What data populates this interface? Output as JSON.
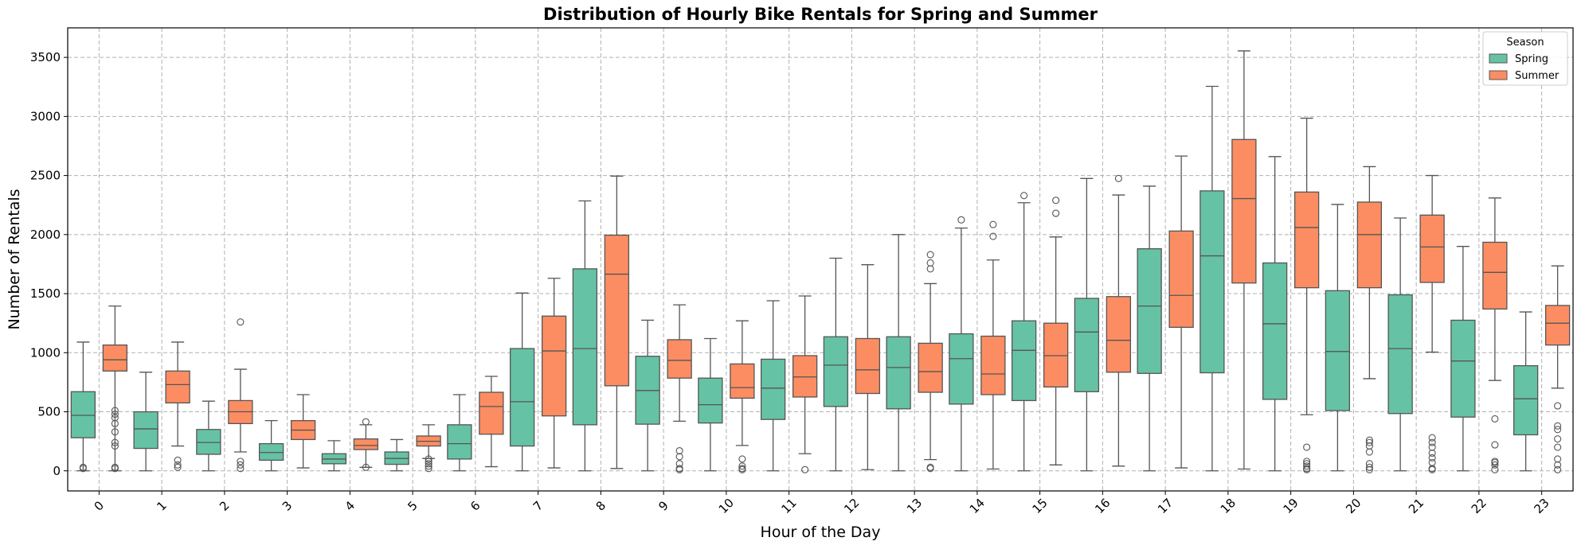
{
  "chart_data": {
    "type": "box",
    "title": "Distribution of Hourly Bike Rentals for Spring and Summer",
    "xlabel": "Hour of the Day",
    "ylabel": "Number of Rentals",
    "ylim": [
      -170,
      3750
    ],
    "yticks": [
      0,
      500,
      1000,
      1500,
      2000,
      2500,
      3000,
      3500
    ],
    "grid": true,
    "legend": {
      "title": "Season",
      "placement": "top-right"
    },
    "categories": [
      "0",
      "1",
      "2",
      "3",
      "4",
      "5",
      "6",
      "7",
      "8",
      "9",
      "10",
      "11",
      "12",
      "13",
      "14",
      "15",
      "16",
      "17",
      "18",
      "19",
      "20",
      "21",
      "22",
      "23"
    ],
    "series": [
      {
        "name": "Spring",
        "color": "#66c2a5",
        "boxes": [
          {
            "whislo": 0,
            "q1": 280,
            "med": 470,
            "q3": 670,
            "whishi": 1090,
            "fliers": [
              20,
              30
            ]
          },
          {
            "whislo": 0,
            "q1": 190,
            "med": 355,
            "q3": 500,
            "whishi": 835,
            "fliers": []
          },
          {
            "whislo": 0,
            "q1": 140,
            "med": 240,
            "q3": 350,
            "whishi": 590,
            "fliers": []
          },
          {
            "whislo": 0,
            "q1": 90,
            "med": 155,
            "q3": 230,
            "whishi": 425,
            "fliers": []
          },
          {
            "whislo": 0,
            "q1": 60,
            "med": 100,
            "q3": 145,
            "whishi": 255,
            "fliers": []
          },
          {
            "whislo": 0,
            "q1": 55,
            "med": 105,
            "q3": 160,
            "whishi": 265,
            "fliers": []
          },
          {
            "whislo": 0,
            "q1": 100,
            "med": 230,
            "q3": 390,
            "whishi": 645,
            "fliers": []
          },
          {
            "whislo": 0,
            "q1": 210,
            "med": 585,
            "q3": 1035,
            "whishi": 1505,
            "fliers": []
          },
          {
            "whislo": 0,
            "q1": 390,
            "med": 1035,
            "q3": 1710,
            "whishi": 2285,
            "fliers": []
          },
          {
            "whislo": 0,
            "q1": 395,
            "med": 680,
            "q3": 970,
            "whishi": 1275,
            "fliers": []
          },
          {
            "whislo": 0,
            "q1": 405,
            "med": 560,
            "q3": 785,
            "whishi": 1120,
            "fliers": []
          },
          {
            "whislo": 0,
            "q1": 435,
            "med": 700,
            "q3": 945,
            "whishi": 1440,
            "fliers": []
          },
          {
            "whislo": 0,
            "q1": 545,
            "med": 895,
            "q3": 1135,
            "whishi": 1800,
            "fliers": []
          },
          {
            "whislo": 0,
            "q1": 525,
            "med": 875,
            "q3": 1135,
            "whishi": 2000,
            "fliers": []
          },
          {
            "whislo": 0,
            "q1": 565,
            "med": 950,
            "q3": 1160,
            "whishi": 2055,
            "fliers": [
              2125
            ]
          },
          {
            "whislo": 0,
            "q1": 595,
            "med": 1020,
            "q3": 1270,
            "whishi": 2270,
            "fliers": [
              2330
            ]
          },
          {
            "whislo": 0,
            "q1": 670,
            "med": 1175,
            "q3": 1460,
            "whishi": 2475,
            "fliers": []
          },
          {
            "whislo": 0,
            "q1": 825,
            "med": 1395,
            "q3": 1880,
            "whishi": 2410,
            "fliers": []
          },
          {
            "whislo": 0,
            "q1": 830,
            "med": 1820,
            "q3": 2370,
            "whishi": 3255,
            "fliers": []
          },
          {
            "whislo": 0,
            "q1": 605,
            "med": 1245,
            "q3": 1760,
            "whishi": 2660,
            "fliers": []
          },
          {
            "whislo": 0,
            "q1": 510,
            "med": 1010,
            "q3": 1525,
            "whishi": 2255,
            "fliers": []
          },
          {
            "whislo": 0,
            "q1": 485,
            "med": 1035,
            "q3": 1490,
            "whishi": 2140,
            "fliers": []
          },
          {
            "whislo": 0,
            "q1": 455,
            "med": 930,
            "q3": 1275,
            "whishi": 1900,
            "fliers": []
          },
          {
            "whislo": 0,
            "q1": 305,
            "med": 610,
            "q3": 890,
            "whishi": 1345,
            "fliers": []
          }
        ]
      },
      {
        "name": "Summer",
        "color": "#fc8d62",
        "boxes": [
          {
            "whislo": 0,
            "q1": 845,
            "med": 940,
            "q3": 1065,
            "whishi": 1395,
            "fliers": [
              20,
              30,
              210,
              240,
              330,
              400,
              450,
              480,
              510
            ]
          },
          {
            "whislo": 210,
            "q1": 575,
            "med": 730,
            "q3": 845,
            "whishi": 1090,
            "fliers": [
              30,
              50,
              90
            ]
          },
          {
            "whislo": 160,
            "q1": 400,
            "med": 500,
            "q3": 595,
            "whishi": 860,
            "fliers": [
              20,
              50,
              80,
              1260
            ]
          },
          {
            "whislo": 25,
            "q1": 265,
            "med": 345,
            "q3": 425,
            "whishi": 645,
            "fliers": []
          },
          {
            "whislo": 30,
            "q1": 180,
            "med": 215,
            "q3": 270,
            "whishi": 390,
            "fliers": [
              30,
              415
            ]
          },
          {
            "whislo": 105,
            "q1": 210,
            "med": 250,
            "q3": 295,
            "whishi": 390,
            "fliers": [
              20,
              40,
              60,
              80,
              100
            ]
          },
          {
            "whislo": 35,
            "q1": 310,
            "med": 545,
            "q3": 665,
            "whishi": 800,
            "fliers": []
          },
          {
            "whislo": 25,
            "q1": 465,
            "med": 1015,
            "q3": 1310,
            "whishi": 1630,
            "fliers": []
          },
          {
            "whislo": 20,
            "q1": 720,
            "med": 1665,
            "q3": 1995,
            "whishi": 2495,
            "fliers": []
          },
          {
            "whislo": 420,
            "q1": 785,
            "med": 935,
            "q3": 1110,
            "whishi": 1405,
            "fliers": [
              10,
              20,
              60,
              120,
              170
            ]
          },
          {
            "whislo": 215,
            "q1": 615,
            "med": 705,
            "q3": 905,
            "whishi": 1270,
            "fliers": [
              10,
              20,
              40,
              100
            ]
          },
          {
            "whislo": 145,
            "q1": 625,
            "med": 795,
            "q3": 975,
            "whishi": 1480,
            "fliers": [
              10
            ]
          },
          {
            "whislo": 10,
            "q1": 655,
            "med": 855,
            "q3": 1120,
            "whishi": 1745,
            "fliers": []
          },
          {
            "whislo": 95,
            "q1": 665,
            "med": 840,
            "q3": 1080,
            "whishi": 1585,
            "fliers": [
              20,
              30,
              1710,
              1760,
              1830
            ]
          },
          {
            "whislo": 15,
            "q1": 645,
            "med": 820,
            "q3": 1140,
            "whishi": 1785,
            "fliers": [
              1985,
              2085
            ]
          },
          {
            "whislo": 50,
            "q1": 710,
            "med": 975,
            "q3": 1250,
            "whishi": 1980,
            "fliers": [
              2180,
              2290
            ]
          },
          {
            "whislo": 40,
            "q1": 835,
            "med": 1105,
            "q3": 1475,
            "whishi": 2335,
            "fliers": [
              2475
            ]
          },
          {
            "whislo": 25,
            "q1": 1215,
            "med": 1485,
            "q3": 2030,
            "whishi": 2665,
            "fliers": []
          },
          {
            "whislo": 15,
            "q1": 1590,
            "med": 2305,
            "q3": 2805,
            "whishi": 3555,
            "fliers": []
          },
          {
            "whislo": 475,
            "q1": 1550,
            "med": 2060,
            "q3": 2360,
            "whishi": 2985,
            "fliers": [
              10,
              20,
              40,
              60,
              80,
              200
            ]
          },
          {
            "whislo": 780,
            "q1": 1550,
            "med": 2000,
            "q3": 2275,
            "whishi": 2575,
            "fliers": [
              10,
              30,
              60,
              160,
              210,
              240,
              260
            ]
          },
          {
            "whislo": 1005,
            "q1": 1595,
            "med": 1895,
            "q3": 2165,
            "whishi": 2500,
            "fliers": [
              10,
              20,
              70,
              110,
              150,
              200,
              240,
              280
            ]
          },
          {
            "whislo": 765,
            "q1": 1370,
            "med": 1680,
            "q3": 1935,
            "whishi": 2310,
            "fliers": [
              10,
              50,
              70,
              80,
              220,
              440
            ]
          },
          {
            "whislo": 700,
            "q1": 1065,
            "med": 1250,
            "q3": 1400,
            "whishi": 1735,
            "fliers": [
              10,
              50,
              100,
              200,
              270,
              350,
              380,
              550
            ]
          }
        ]
      }
    ]
  }
}
